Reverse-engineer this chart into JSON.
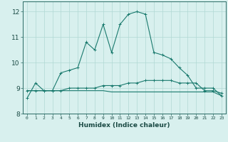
{
  "xlabel": "Humidex (Indice chaleur)",
  "x_values": [
    0,
    1,
    2,
    3,
    4,
    5,
    6,
    7,
    8,
    9,
    10,
    11,
    12,
    13,
    14,
    15,
    16,
    17,
    18,
    19,
    20,
    21,
    22,
    23
  ],
  "line1": [
    8.6,
    9.2,
    8.9,
    8.9,
    9.6,
    9.7,
    9.8,
    10.8,
    10.5,
    11.5,
    10.4,
    11.5,
    11.9,
    12.0,
    11.9,
    10.4,
    10.3,
    10.15,
    9.8,
    9.5,
    9.0,
    9.0,
    9.0,
    8.7
  ],
  "line2": [
    8.9,
    8.9,
    8.9,
    8.9,
    8.9,
    9.0,
    9.0,
    9.0,
    9.0,
    9.1,
    9.1,
    9.1,
    9.2,
    9.2,
    9.3,
    9.3,
    9.3,
    9.3,
    9.2,
    9.2,
    9.2,
    8.9,
    8.9,
    8.8
  ],
  "line3": [
    8.9,
    8.9,
    8.9,
    8.9,
    8.9,
    8.9,
    8.9,
    8.9,
    8.9,
    8.9,
    8.85,
    8.85,
    8.85,
    8.85,
    8.85,
    8.85,
    8.85,
    8.85,
    8.85,
    8.85,
    8.85,
    8.85,
    8.85,
    8.7
  ],
  "line_color": "#1a7a6e",
  "bg_color": "#d8f0ee",
  "grid_color": "#b0d8d4",
  "ylim": [
    8.0,
    12.4
  ],
  "yticks": [
    8,
    9,
    10,
    11,
    12
  ],
  "xlim": [
    -0.5,
    23.5
  ],
  "tick_color": "#2a6a64",
  "label_color": "#1a4a44"
}
